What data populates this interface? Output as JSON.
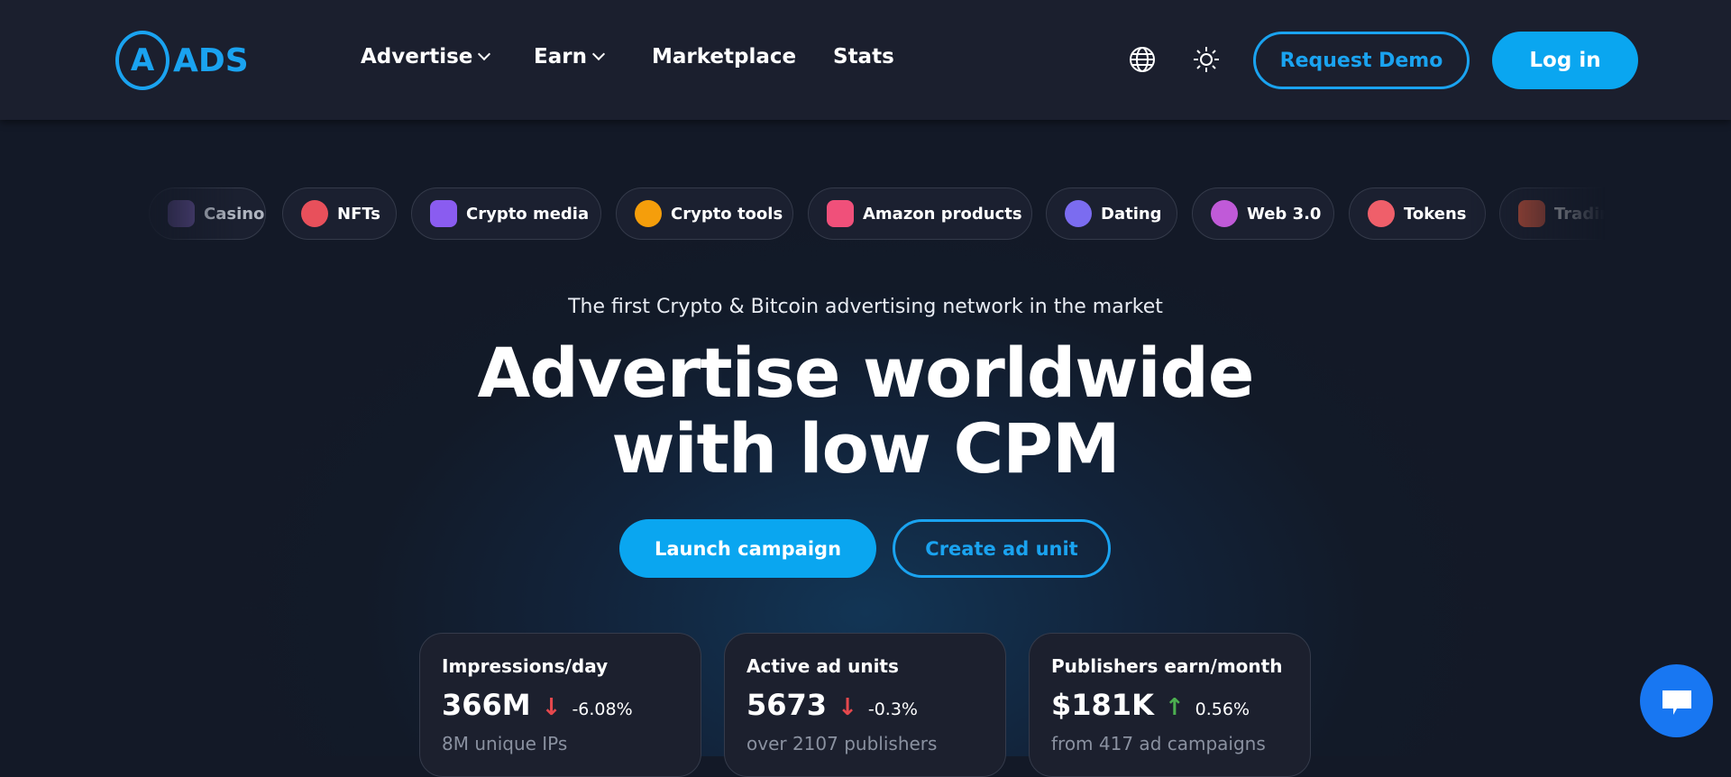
{
  "header": {
    "logo_text": "ADS",
    "logo_letter": "A",
    "nav": [
      {
        "label": "Advertise",
        "dropdown": true
      },
      {
        "label": "Earn",
        "dropdown": true
      },
      {
        "label": "Marketplace"
      },
      {
        "label": "Stats"
      }
    ],
    "icons": [
      "globe-icon",
      "sun-icon"
    ],
    "request_demo": "Request Demo",
    "login": "Log in"
  },
  "categories": [
    {
      "label": "Casino",
      "color": "#5b4a8a"
    },
    {
      "label": "NFTs",
      "color": "#e8505b"
    },
    {
      "label": "Crypto media",
      "color": "#8a5cf0"
    },
    {
      "label": "Crypto tools",
      "color": "#f59e0b"
    },
    {
      "label": "Amazon products",
      "color": "#f0507a"
    },
    {
      "label": "Dating",
      "color": "#7b6cf0"
    },
    {
      "label": "Web 3.0",
      "color": "#c05ad8"
    },
    {
      "label": "Tokens",
      "color": "#ef5f6a"
    },
    {
      "label": "Trading",
      "color": "#c0503a"
    }
  ],
  "hero": {
    "tagline": "The first Crypto & Bitcoin advertising network in the market",
    "line1": "Advertise worldwide",
    "line2": "with low CPM",
    "launch": "Launch campaign",
    "create": "Create ad unit"
  },
  "stats": [
    {
      "title": "Impressions/day",
      "value": "366M",
      "arrow": "↓",
      "change": "-6.08%",
      "trend": "down",
      "sub": "8M unique IPs"
    },
    {
      "title": "Active ad units",
      "value": "5673",
      "arrow": "↓",
      "change": "-0.3%",
      "trend": "down",
      "sub": "over 2107 publishers"
    },
    {
      "title": "Publishers earn/month",
      "value": "$181K",
      "arrow": "↑",
      "change": "0.56%",
      "trend": "up",
      "sub": "from 417 ad campaigns"
    }
  ],
  "colors": {
    "accent": "#0aa6f0",
    "down": "#e5484d",
    "up": "#4caf50",
    "chat": "#1877f2"
  }
}
